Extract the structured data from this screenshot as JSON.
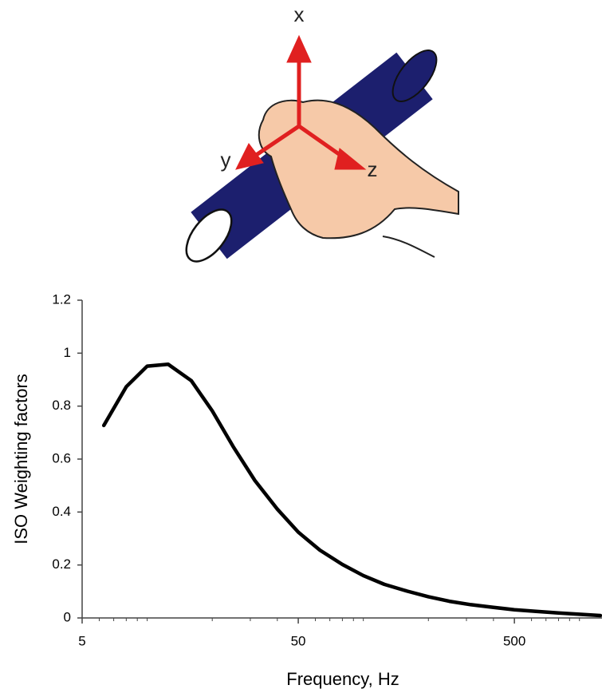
{
  "illustration": {
    "axis_labels": [
      "x",
      "y",
      "z"
    ]
  },
  "chart_data": {
    "type": "line",
    "x_label": "Frequency, Hz",
    "y_label": "ISO Weighting factors",
    "x": [
      6.3,
      8,
      10,
      12.5,
      16,
      20,
      25,
      31.5,
      40,
      50,
      63,
      80,
      100,
      125,
      160,
      200,
      250,
      315,
      400,
      500,
      630,
      800,
      1000,
      1250
    ],
    "values": [
      0.727,
      0.873,
      0.951,
      0.958,
      0.896,
      0.782,
      0.647,
      0.519,
      0.411,
      0.324,
      0.256,
      0.202,
      0.16,
      0.127,
      0.101,
      0.08,
      0.063,
      0.05,
      0.04,
      0.031,
      0.025,
      0.019,
      0.014,
      0.009
    ],
    "color": "#000000",
    "x_log": true,
    "xlim": [
      5,
      1250
    ],
    "xticks": [
      5,
      50,
      500
    ],
    "x_minor_ticks": [
      6,
      7,
      8,
      9,
      10,
      20,
      30,
      40,
      60,
      70,
      80,
      90,
      100,
      200,
      300,
      400,
      600,
      700,
      800,
      900,
      1000
    ],
    "ylim": [
      0,
      1.2
    ],
    "yticks": [
      0,
      0.2,
      0.4,
      0.6,
      0.8,
      1,
      1.2
    ],
    "grid": false
  }
}
